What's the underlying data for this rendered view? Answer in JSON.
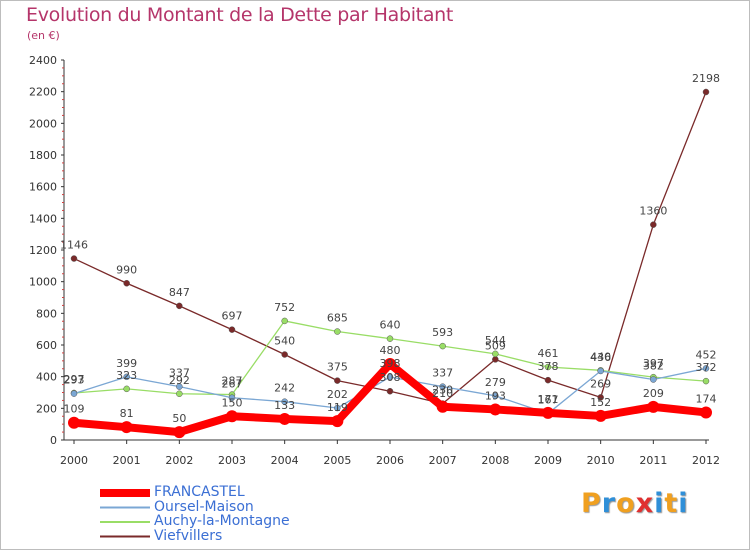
{
  "title": "Evolution du Montant de la Dette par Habitant",
  "subtitle": "(en €)",
  "logo": {
    "text": "Proxiti",
    "colors": [
      "#f0a020",
      "#2f8fd8",
      "#f0a020",
      "#e03030",
      "#2f8fd8",
      "#f0a020",
      "#2f8fd8"
    ]
  },
  "chart_data": {
    "type": "line",
    "x": [
      "2000",
      "2001",
      "2002",
      "2003",
      "2004",
      "2005",
      "2006",
      "2007",
      "2008",
      "2009",
      "2010",
      "2011",
      "2012"
    ],
    "ylim": [
      0,
      2400
    ],
    "yticks": [
      "0",
      "200",
      "400",
      "600",
      "800",
      "1000",
      "1200",
      "1400",
      "1600",
      "1800",
      "2000",
      "2200",
      "2400"
    ],
    "grid": false,
    "legend_position": "bottom-left",
    "series": [
      {
        "name": "FRANCASTEL",
        "color": "#ff0000",
        "values": [
          109,
          81,
          50,
          150,
          133,
          119,
          480,
          210,
          193,
          171,
          152,
          209,
          174
        ],
        "labels": [
          "109",
          "81",
          "50",
          "150",
          "133",
          "119",
          "480",
          "210",
          "193",
          "171",
          "152",
          "209",
          "174"
        ]
      },
      {
        "name": "Oursel-Maison",
        "color": "#7ba7d4",
        "values": [
          293,
          399,
          337,
          267,
          242,
          202,
          398,
          337,
          279,
          167,
          436,
          382,
          452
        ],
        "labels": [
          "293",
          "399",
          "337",
          "267",
          "242",
          "202",
          "398",
          "337",
          "279",
          "167",
          "436",
          "382",
          "452"
        ]
      },
      {
        "name": "Auchy-la-Montagne",
        "color": "#99dd66",
        "values": [
          297,
          323,
          292,
          287,
          752,
          685,
          640,
          593,
          544,
          461,
          440,
          397,
          372
        ],
        "labels": [
          "297",
          "323",
          "292",
          "287",
          "752",
          "685",
          "640",
          "593",
          "544",
          "461",
          "440",
          "397",
          "372"
        ]
      },
      {
        "name": "Viefvillers",
        "color": "#7a2a2a",
        "values": [
          1146,
          990,
          847,
          697,
          540,
          375,
          308,
          230,
          509,
          378,
          269,
          1360,
          2198
        ],
        "labels": [
          "1146",
          "990",
          "847",
          "697",
          "540",
          "375",
          "308",
          "230",
          "509",
          "378",
          "269",
          "1360",
          "2198"
        ]
      }
    ]
  }
}
